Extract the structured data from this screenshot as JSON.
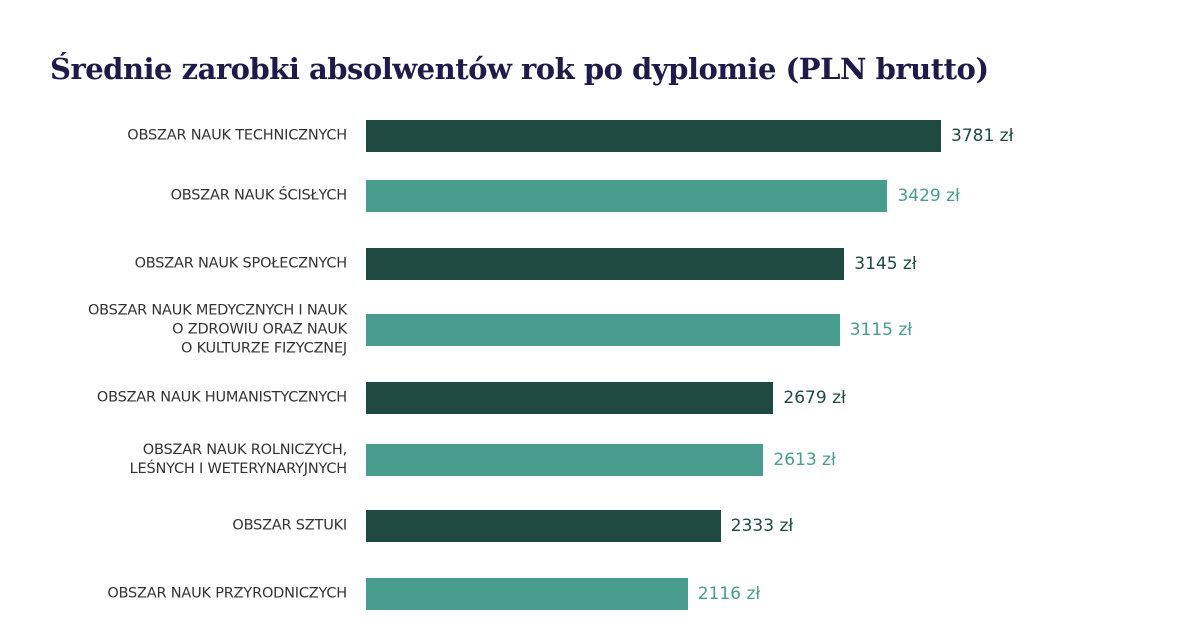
{
  "chart_data": {
    "type": "bar",
    "orientation": "horizontal",
    "title": "Średnie zarobki absolwentów rok po dyplomie (PLN brutto)",
    "categories": [
      "OBSZAR NAUK TECHNICZNYCH",
      "OBSZAR NAUK ŚCISŁYCH",
      "OBSZAR NAUK SPOŁECZNYCH",
      "OBSZAR NAUK MEDYCZNYCH I NAUK\nO ZDROWIU ORAZ NAUK\nO KULTURZE FIZYCZNEJ",
      "OBSZAR NAUK HUMANISTYCZNYCH",
      "OBSZAR NAUK ROLNICZYCH,\nLEŚNYCH I WETERYNARYJNYCH",
      "OBSZAR SZTUKI",
      "OBSZAR NAUK PRZYRODNICZYCH"
    ],
    "values": [
      3781,
      3429,
      3145,
      3115,
      2679,
      2613,
      2333,
      2116
    ],
    "value_labels": [
      "3781 zł",
      "3429 zł",
      "3145 zł",
      "3115 zł",
      "2679 zł",
      "2613 zł",
      "2333 zł",
      "2116 zł"
    ],
    "unit": "zł",
    "xlim": [
      0,
      3781
    ],
    "grid": false,
    "colors": [
      "#1f4a42",
      "#489d8f"
    ]
  }
}
